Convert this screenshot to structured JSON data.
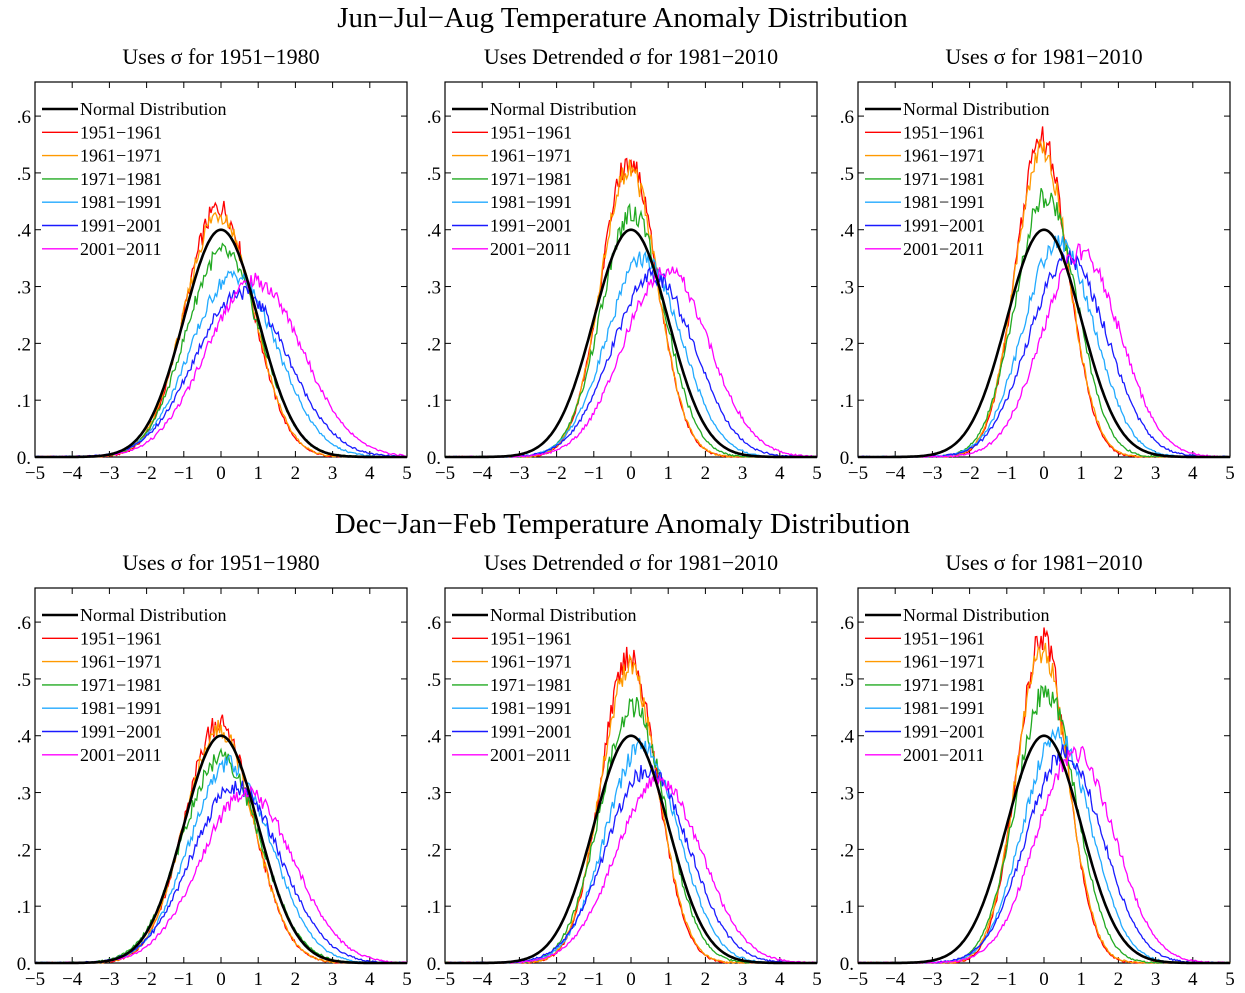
{
  "group_titles": [
    "Jun−Jul−Aug Temperature Anomaly Distribution",
    "Dec−Jan−Feb Temperature Anomaly Distribution"
  ],
  "colors": {
    "normal": "#000000",
    "1951-1961": "#ff0000",
    "1961-1971": "#ff9900",
    "1971-1981": "#22aa22",
    "1981-1991": "#22aaff",
    "1991-2001": "#1a1aff",
    "2001-2011": "#ff00ff"
  },
  "chart_data": [
    {
      "type": "line",
      "group": "Jun−Jul−Aug Temperature Anomaly Distribution",
      "title": "Uses σ for 1951−1980",
      "xlim": [
        -5,
        5
      ],
      "ylim": [
        0,
        0.66
      ],
      "x_ticks": [
        "−5",
        "−4",
        "−3",
        "−2",
        "−1",
        "0",
        "1",
        "2",
        "3",
        "4",
        "5"
      ],
      "y_ticks": [
        "0.",
        ".1",
        ".2",
        ".3",
        ".4",
        ".5",
        ".6"
      ],
      "legend_position": "top-left",
      "series": [
        {
          "name": "Normal Distribution",
          "mean": 0.0,
          "sd": 1.0,
          "peak": 0.4
        },
        {
          "name": "1951−1961",
          "mean": -0.05,
          "sd": 0.9,
          "peak": 0.44
        },
        {
          "name": "1961−1971",
          "mean": -0.05,
          "sd": 0.92,
          "peak": 0.43
        },
        {
          "name": "1971−1981",
          "mean": 0.05,
          "sd": 1.0,
          "peak": 0.36
        },
        {
          "name": "1981−1991",
          "mean": 0.35,
          "sd": 1.15,
          "peak": 0.32
        },
        {
          "name": "1991−2001",
          "mean": 0.55,
          "sd": 1.25,
          "peak": 0.29
        },
        {
          "name": "2001−2011",
          "mean": 0.9,
          "sd": 1.3,
          "peak": 0.31
        }
      ]
    },
    {
      "type": "line",
      "group": "Jun−Jul−Aug Temperature Anomaly Distribution",
      "title": "Uses Detrended σ for 1981−2010",
      "xlim": [
        -5,
        5
      ],
      "ylim": [
        0,
        0.66
      ],
      "x_ticks": [
        "−5",
        "−4",
        "−3",
        "−2",
        "−1",
        "0",
        "1",
        "2",
        "3",
        "4",
        "5"
      ],
      "y_ticks": [
        "0.",
        ".1",
        ".2",
        ".3",
        ".4",
        ".5",
        ".6"
      ],
      "legend_position": "top-left",
      "series": [
        {
          "name": "Normal Distribution",
          "mean": 0.0,
          "sd": 1.0,
          "peak": 0.4
        },
        {
          "name": "1951−1961",
          "mean": -0.05,
          "sd": 0.75,
          "peak": 0.52
        },
        {
          "name": "1961−1971",
          "mean": -0.05,
          "sd": 0.76,
          "peak": 0.51
        },
        {
          "name": "1971−1981",
          "mean": 0.05,
          "sd": 0.85,
          "peak": 0.43
        },
        {
          "name": "1981−1991",
          "mean": 0.35,
          "sd": 1.0,
          "peak": 0.35
        },
        {
          "name": "1991−2001",
          "mean": 0.6,
          "sd": 1.1,
          "peak": 0.32
        },
        {
          "name": "2001−2011",
          "mean": 0.95,
          "sd": 1.15,
          "peak": 0.33
        }
      ]
    },
    {
      "type": "line",
      "group": "Jun−Jul−Aug Temperature Anomaly Distribution",
      "title": "Uses σ for 1981−2010",
      "xlim": [
        -5,
        5
      ],
      "ylim": [
        0,
        0.66
      ],
      "x_ticks": [
        "−5",
        "−4",
        "−3",
        "−2",
        "−1",
        "0",
        "1",
        "2",
        "3",
        "4",
        "5"
      ],
      "y_ticks": [
        "0.",
        ".1",
        ".2",
        ".3",
        ".4",
        ".5",
        ".6"
      ],
      "legend_position": "top-left",
      "series": [
        {
          "name": "Normal Distribution",
          "mean": 0.0,
          "sd": 1.0,
          "peak": 0.4
        },
        {
          "name": "1951−1961",
          "mean": -0.05,
          "sd": 0.7,
          "peak": 0.56
        },
        {
          "name": "1961−1971",
          "mean": -0.05,
          "sd": 0.72,
          "peak": 0.54
        },
        {
          "name": "1971−1981",
          "mean": 0.05,
          "sd": 0.82,
          "peak": 0.46
        },
        {
          "name": "1981−1991",
          "mean": 0.4,
          "sd": 0.95,
          "peak": 0.38
        },
        {
          "name": "1991−2001",
          "mean": 0.65,
          "sd": 1.05,
          "peak": 0.35
        },
        {
          "name": "2001−2011",
          "mean": 1.0,
          "sd": 1.05,
          "peak": 0.36
        }
      ]
    },
    {
      "type": "line",
      "group": "Dec−Jan−Feb Temperature Anomaly Distribution",
      "title": "Uses σ for 1951−1980",
      "xlim": [
        -5,
        5
      ],
      "ylim": [
        0,
        0.66
      ],
      "x_ticks": [
        "−5",
        "−4",
        "−3",
        "−2",
        "−1",
        "0",
        "1",
        "2",
        "3",
        "4",
        "5"
      ],
      "y_ticks": [
        "0.",
        ".1",
        ".2",
        ".3",
        ".4",
        ".5",
        ".6"
      ],
      "legend_position": "top-left",
      "series": [
        {
          "name": "Normal Distribution",
          "mean": 0.0,
          "sd": 1.0,
          "peak": 0.4
        },
        {
          "name": "1951−1961",
          "mean": -0.05,
          "sd": 0.92,
          "peak": 0.42
        },
        {
          "name": "1961−1971",
          "mean": -0.05,
          "sd": 0.93,
          "peak": 0.41
        },
        {
          "name": "1971−1981",
          "mean": 0.0,
          "sd": 1.05,
          "peak": 0.36
        },
        {
          "name": "1981−1991",
          "mean": 0.25,
          "sd": 1.1,
          "peak": 0.35
        },
        {
          "name": "1991−2001",
          "mean": 0.4,
          "sd": 1.2,
          "peak": 0.31
        },
        {
          "name": "2001−2011",
          "mean": 0.7,
          "sd": 1.25,
          "peak": 0.3
        }
      ]
    },
    {
      "type": "line",
      "group": "Dec−Jan−Feb Temperature Anomaly Distribution",
      "title": "Uses Detrended σ for 1981−2010",
      "xlim": [
        -5,
        5
      ],
      "ylim": [
        0,
        0.66
      ],
      "x_ticks": [
        "−5",
        "−4",
        "−3",
        "−2",
        "−1",
        "0",
        "1",
        "2",
        "3",
        "4",
        "5"
      ],
      "y_ticks": [
        "0.",
        ".1",
        ".2",
        ".3",
        ".4",
        ".5",
        ".6"
      ],
      "legend_position": "top-left",
      "series": [
        {
          "name": "Normal Distribution",
          "mean": 0.0,
          "sd": 1.0,
          "peak": 0.4
        },
        {
          "name": "1951−1961",
          "mean": -0.05,
          "sd": 0.75,
          "peak": 0.54
        },
        {
          "name": "1961−1971",
          "mean": -0.05,
          "sd": 0.77,
          "peak": 0.52
        },
        {
          "name": "1971−1981",
          "mean": 0.05,
          "sd": 0.88,
          "peak": 0.45
        },
        {
          "name": "1981−1991",
          "mean": 0.3,
          "sd": 0.98,
          "peak": 0.38
        },
        {
          "name": "1991−2001",
          "mean": 0.45,
          "sd": 1.1,
          "peak": 0.34
        },
        {
          "name": "2001−2011",
          "mean": 0.75,
          "sd": 1.15,
          "peak": 0.32
        }
      ]
    },
    {
      "type": "line",
      "group": "Dec−Jan−Feb Temperature Anomaly Distribution",
      "title": "Uses σ for 1981−2010",
      "xlim": [
        -5,
        5
      ],
      "ylim": [
        0,
        0.66
      ],
      "x_ticks": [
        "−5",
        "−4",
        "−3",
        "−2",
        "−1",
        "0",
        "1",
        "2",
        "3",
        "4",
        "5"
      ],
      "y_ticks": [
        "0.",
        ".1",
        ".2",
        ".3",
        ".4",
        ".5",
        ".6"
      ],
      "legend_position": "top-left",
      "series": [
        {
          "name": "Normal Distribution",
          "mean": 0.0,
          "sd": 1.0,
          "peak": 0.4
        },
        {
          "name": "1951−1961",
          "mean": -0.05,
          "sd": 0.68,
          "peak": 0.57
        },
        {
          "name": "1961−1971",
          "mean": -0.05,
          "sd": 0.7,
          "peak": 0.55
        },
        {
          "name": "1971−1981",
          "mean": 0.05,
          "sd": 0.8,
          "peak": 0.48
        },
        {
          "name": "1981−1991",
          "mean": 0.35,
          "sd": 0.92,
          "peak": 0.4
        },
        {
          "name": "1991−2001",
          "mean": 0.55,
          "sd": 1.02,
          "peak": 0.37
        },
        {
          "name": "2001−2011",
          "mean": 0.85,
          "sd": 1.05,
          "peak": 0.37
        }
      ]
    }
  ]
}
